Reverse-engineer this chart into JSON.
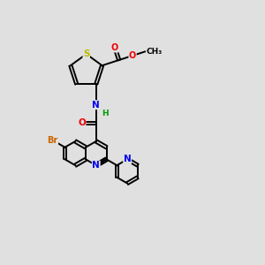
{
  "background_color": "#e0e0e0",
  "atom_colors": {
    "C": "#000000",
    "N": "#0000ee",
    "O": "#ee0000",
    "S": "#bbbb00",
    "Br": "#cc6600",
    "H": "#009900"
  },
  "figsize": [
    3.0,
    3.0
  ],
  "dpi": 100
}
